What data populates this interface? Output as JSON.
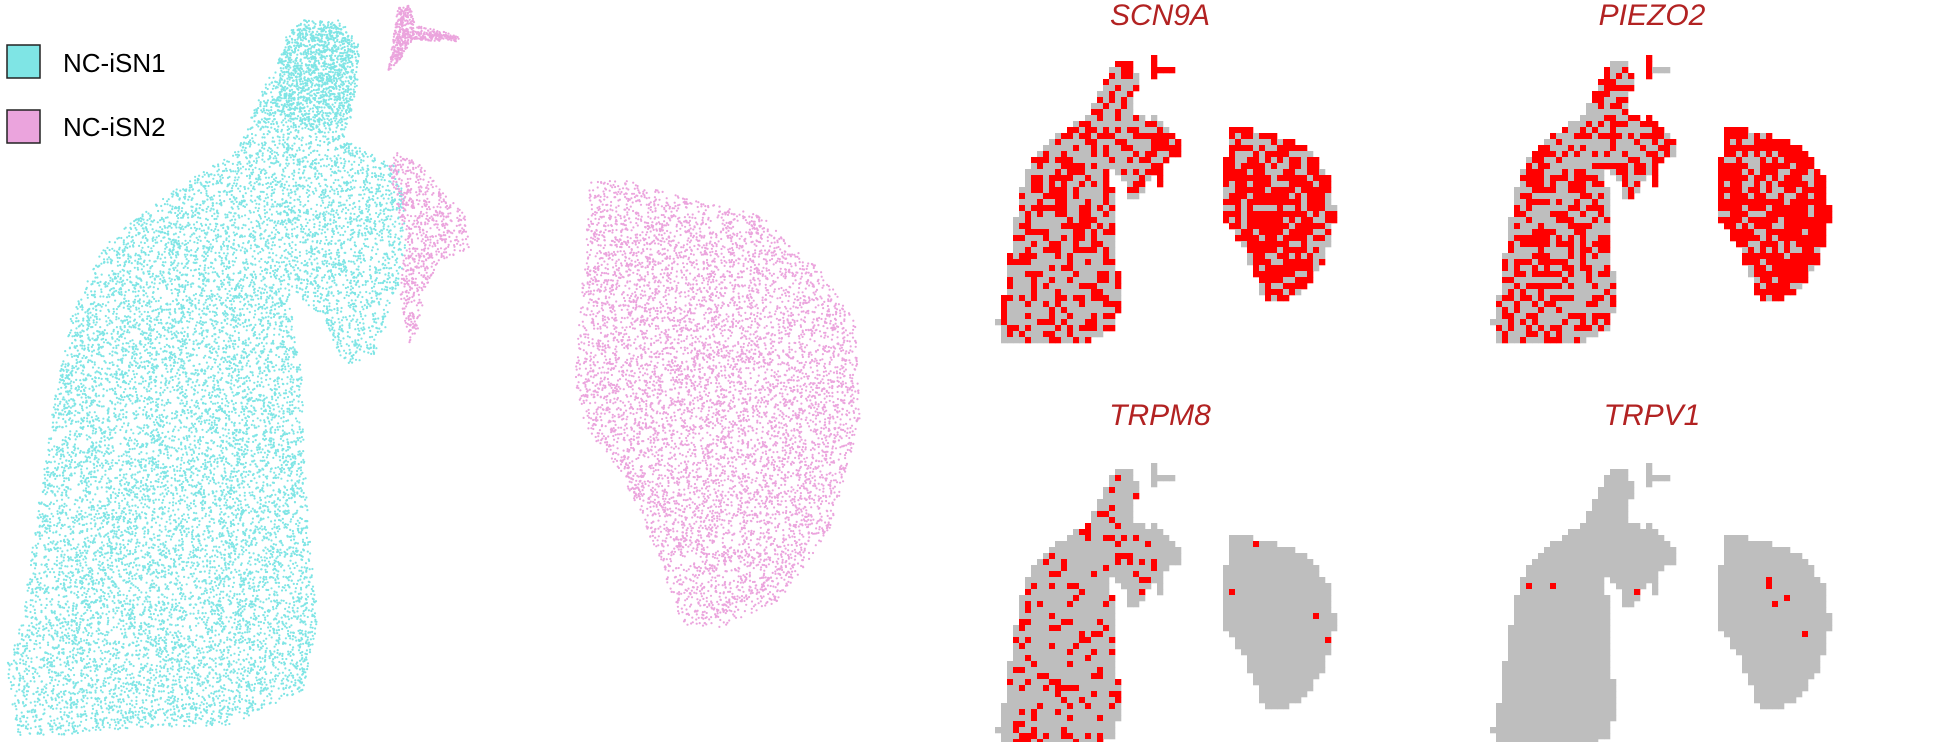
{
  "chart_data": [
    {
      "type": "scatter",
      "title": "",
      "xlabel": "",
      "ylabel": "",
      "grid": false,
      "axes_visible": false,
      "legend_position": "top-left",
      "series": [
        {
          "name": "NC-iSN1",
          "color": "#7fe5e5"
        },
        {
          "name": "NC-iSN2",
          "color": "#eba4dd"
        }
      ]
    },
    {
      "type": "heatmap",
      "title": "SCN9A",
      "expressed_color": "#ff0000",
      "background_color": "#bebebe",
      "expressed_fraction_cluster1": 0.38,
      "expressed_fraction_cluster2": 0.72
    },
    {
      "type": "heatmap",
      "title": "PIEZO2",
      "expressed_color": "#ff0000",
      "background_color": "#bebebe",
      "expressed_fraction_cluster1": 0.4,
      "expressed_fraction_cluster2": 0.78
    },
    {
      "type": "heatmap",
      "title": "TRPM8",
      "expressed_color": "#ff0000",
      "background_color": "#bebebe",
      "expressed_fraction_cluster1": 0.2,
      "expressed_fraction_cluster2": 0.02
    },
    {
      "type": "heatmap",
      "title": "TRPV1",
      "expressed_color": "#ff0000",
      "background_color": "#bebebe",
      "expressed_fraction_cluster1": 0.006,
      "expressed_fraction_cluster2": 0.012
    }
  ]
}
